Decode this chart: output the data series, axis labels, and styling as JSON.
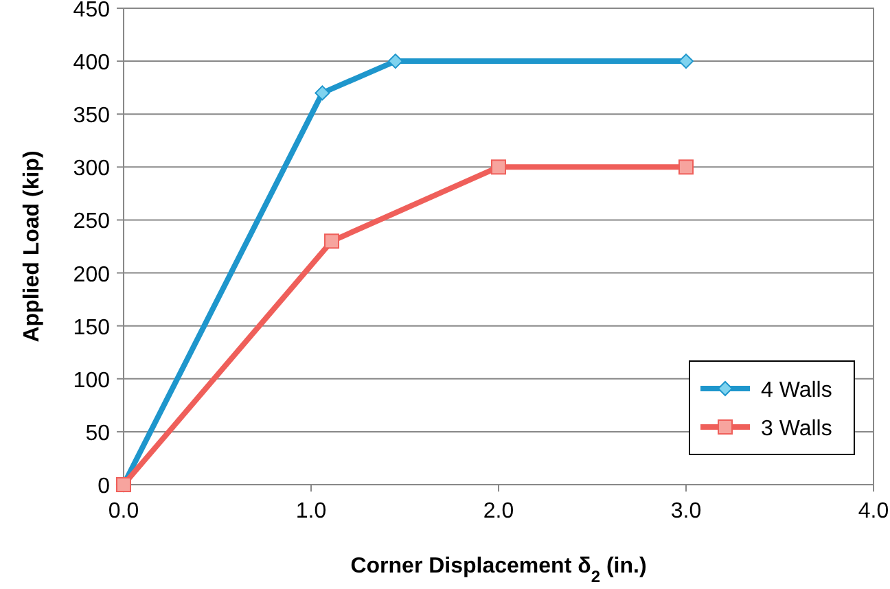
{
  "chart_data": {
    "type": "line",
    "xlabel": "Corner Displacement δ$_{2}$ (in.)",
    "ylabel": "Applied Load (kip)",
    "xlim": [
      0,
      4
    ],
    "xticks": [
      {
        "value": 0,
        "label": "0.0"
      },
      {
        "value": 1,
        "label": "1.0"
      },
      {
        "value": 2,
        "label": "2.0"
      },
      {
        "value": 3,
        "label": "3.0"
      },
      {
        "value": 4,
        "label": "4.0"
      }
    ],
    "ylim": [
      0,
      450
    ],
    "yticks": [
      0,
      50,
      100,
      150,
      200,
      250,
      300,
      350,
      400,
      450
    ],
    "grid": "y",
    "legend": "bottom right",
    "line_style": "solid",
    "series": [
      {
        "name": "4 Walls",
        "color": "#1e96cc",
        "marker": "diamond",
        "x": [
          0,
          1.06,
          1.45,
          3.0
        ],
        "values": [
          0,
          370,
          400,
          400
        ]
      },
      {
        "name": "3 Walls",
        "color": "#ef5f5a",
        "marker": "square",
        "x": [
          0,
          1.11,
          2.0,
          3.0
        ],
        "values": [
          0,
          230,
          300,
          300
        ]
      }
    ]
  }
}
